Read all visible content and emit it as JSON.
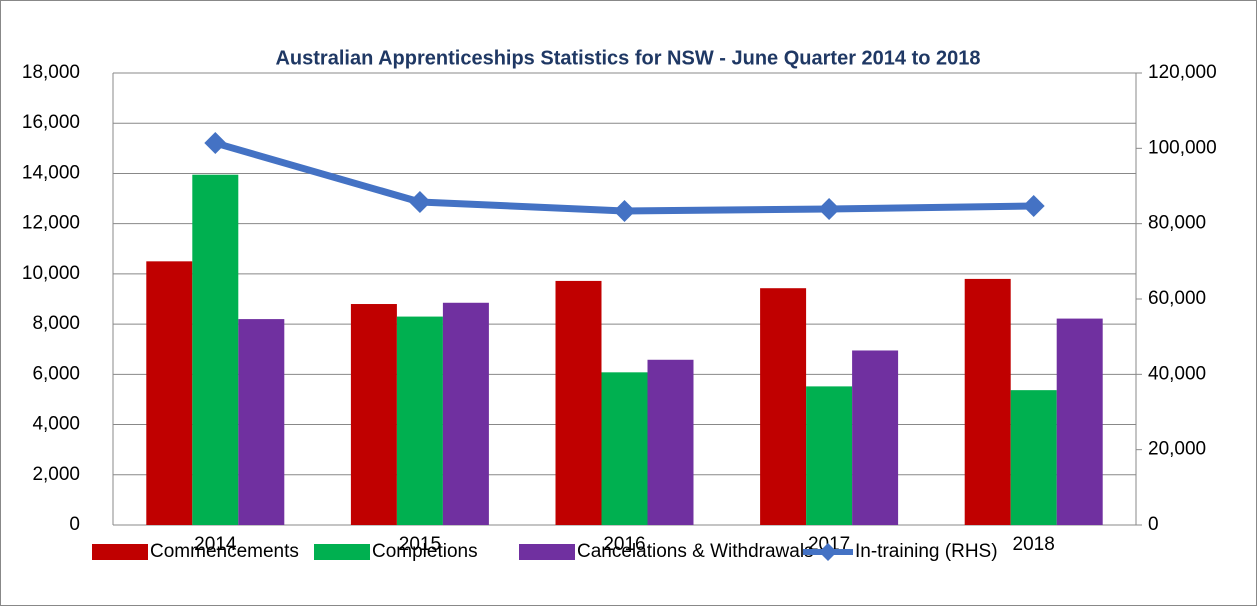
{
  "chart_data": {
    "type": "bar",
    "title": "Australian Apprenticeships Statistics for NSW - June Quarter  2014 to 2018",
    "categories": [
      "2014",
      "2015",
      "2016",
      "2017",
      "2018"
    ],
    "series": [
      {
        "name": "Commencements",
        "color": "#c00000",
        "values": [
          10500,
          8800,
          9720,
          9430,
          9800
        ]
      },
      {
        "name": "Completions",
        "color": "#00b050",
        "values": [
          13950,
          8300,
          6080,
          5520,
          5370
        ]
      },
      {
        "name": "Cancelations & Withdrawals",
        "color": "#7030a0",
        "values": [
          8200,
          8850,
          6580,
          6950,
          8220
        ]
      },
      {
        "name": "In-training (RHS)",
        "color": "#4472c4",
        "axis": "y2",
        "type": "line",
        "values": [
          101400,
          85750,
          83360,
          83900,
          84690
        ]
      }
    ],
    "ylim": [
      0,
      18000
    ],
    "yticks": [
      0,
      {
        "value": 2000,
        "label": "2,000"
      },
      {
        "value": 4000,
        "label": "4,000"
      },
      {
        "value": 6000,
        "label": "6,000"
      },
      {
        "value": 8000,
        "label": "8,000"
      },
      {
        "value": 10000,
        "label": "10,000"
      },
      {
        "value": 12000,
        "label": "12,000"
      },
      {
        "value": 14000,
        "label": "14,000"
      },
      {
        "value": 16000,
        "label": "16,000"
      },
      {
        "value": 18000,
        "label": "18,000"
      }
    ],
    "y2lim": [
      0,
      120000
    ],
    "y2ticks": [
      0,
      {
        "value": 20000,
        "label": "20,000"
      },
      {
        "value": 40000,
        "label": "40,000"
      },
      {
        "value": 60000,
        "label": "60,000"
      },
      {
        "value": 80000,
        "label": "80,000"
      },
      {
        "value": 100000,
        "label": "100,000"
      },
      {
        "value": 120000,
        "label": "120,000"
      }
    ],
    "grid": true,
    "legend": "bottom"
  }
}
